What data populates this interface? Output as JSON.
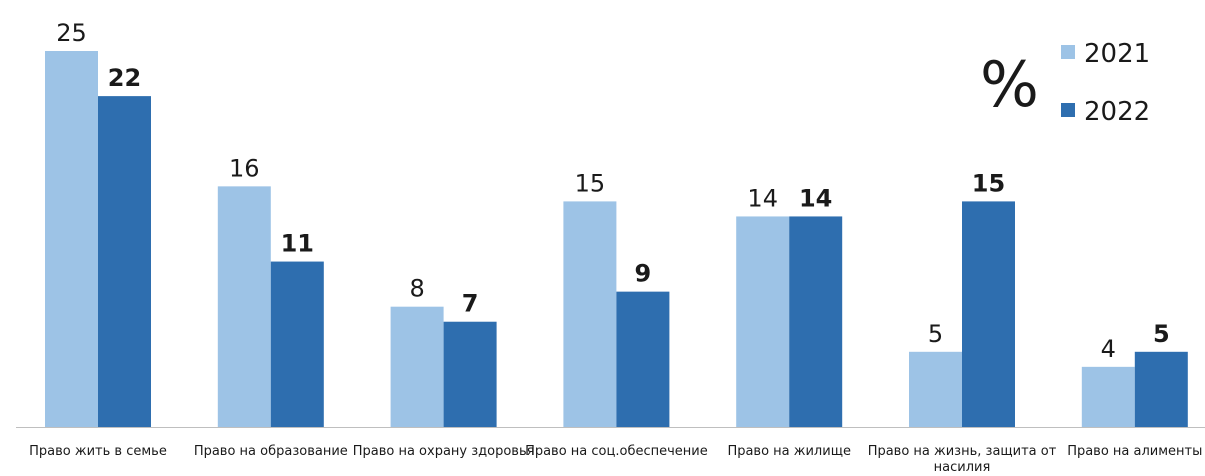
{
  "chart_data": {
    "type": "bar",
    "unit": "%",
    "categories": [
      "Право жить в семье",
      "Право на образование",
      "Право на охрану здоровья",
      "Право на соц.обеспечение",
      "Право на жилище",
      "Право на жизнь, защита от насилия",
      "Право на алименты"
    ],
    "series": [
      {
        "name": "2021",
        "color": "#9dc3e6",
        "values": [
          25,
          16,
          8,
          15,
          14,
          5,
          4
        ]
      },
      {
        "name": "2022",
        "color": "#2e6eaf",
        "values": [
          22,
          11,
          7,
          9,
          14,
          15,
          5
        ]
      }
    ],
    "ylim": [
      0,
      25
    ],
    "grid": false,
    "legend_position": "top-right"
  }
}
